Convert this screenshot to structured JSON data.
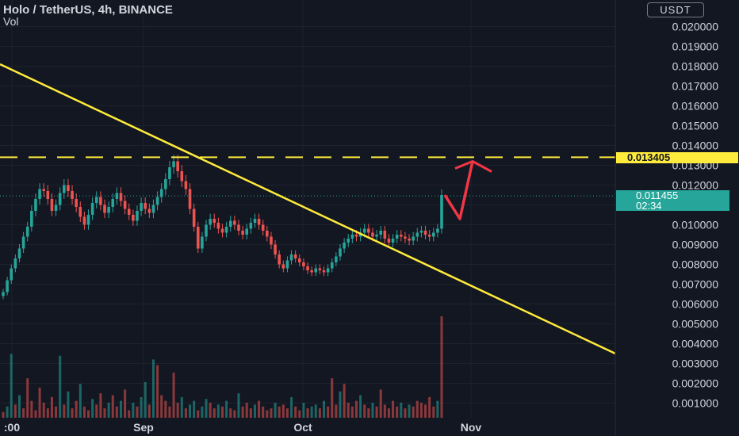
{
  "header": {
    "title": "Holo / TetherUS, 4h, BINANCE",
    "volume_label": "Vol",
    "currency": "USDT"
  },
  "markers": {
    "level_label": "0.013405",
    "last_price": "0.011455",
    "countdown": "02:34"
  },
  "colors": {
    "background": "#131722",
    "up": "#26a69a",
    "down": "#ef5350",
    "trendline": "#ffeb3b",
    "arrow": "#f23645",
    "text": "#d1d4dc"
  },
  "chart_data": {
    "type": "candlestick",
    "symbol": "Holo / TetherUS",
    "interval": "4h",
    "exchange": "BINANCE",
    "ylim": [
      0.0002,
      0.0212
    ],
    "y_ticks": [
      "0.001000",
      "0.002000",
      "0.003000",
      "0.004000",
      "0.005000",
      "0.006000",
      "0.007000",
      "0.008000",
      "0.009000",
      "0.010000",
      "0.011000",
      "0.012000",
      "0.013000",
      "0.014000",
      "0.015000",
      "0.016000",
      "0.017000",
      "0.018000",
      "0.019000",
      "0.020000"
    ],
    "x_ticks": [
      ":00",
      "Sep",
      "Oct",
      "Nov"
    ],
    "series": [
      {
        "values": [
          0.0066,
          0.0072,
          0.0078,
          0.0083,
          0.0088,
          0.0094,
          0.0099,
          0.0107,
          0.0113,
          0.0118,
          0.0117,
          0.0113,
          0.0107,
          0.011,
          0.0116,
          0.012,
          0.0117,
          0.0113,
          0.0109,
          0.0104,
          0.01,
          0.0105,
          0.0111,
          0.0114,
          0.011,
          0.0106,
          0.0109,
          0.0113,
          0.0116,
          0.0112,
          0.0108,
          0.0105,
          0.0102,
          0.0107,
          0.0111,
          0.0108,
          0.0106,
          0.011,
          0.0114,
          0.0118,
          0.0123,
          0.0129,
          0.0132,
          0.0127,
          0.0122,
          0.0118,
          0.0108,
          0.0099,
          0.0088,
          0.0094,
          0.01,
          0.0103,
          0.0101,
          0.0098,
          0.0096,
          0.0099,
          0.0102,
          0.01,
          0.0097,
          0.0095,
          0.0098,
          0.0101,
          0.0103,
          0.01,
          0.0097,
          0.0094,
          0.009,
          0.0085,
          0.008,
          0.0078,
          0.0082,
          0.0085,
          0.0083,
          0.0081,
          0.0079,
          0.0077,
          0.0076,
          0.0078,
          0.0077,
          0.0076,
          0.0078,
          0.0081,
          0.0084,
          0.0088,
          0.0091,
          0.0093,
          0.0095,
          0.0094,
          0.0096,
          0.0098,
          0.0096,
          0.0094,
          0.0095,
          0.0097,
          0.0093,
          0.0091,
          0.0093,
          0.0095,
          0.0094,
          0.0093,
          0.0092,
          0.0094,
          0.0096,
          0.0097,
          0.0095,
          0.0094,
          0.0096,
          0.0098,
          0.0115
        ]
      }
    ],
    "annotations": [
      {
        "kind": "horizontal_dashed_level",
        "value": 0.013405,
        "label": "0.013405"
      },
      {
        "kind": "last_price_line",
        "value": 0.011455,
        "label": "0.011455"
      },
      {
        "kind": "descending_trendline",
        "from": 0.0181,
        "to": 0.0035
      },
      {
        "kind": "projection_arrow",
        "points": [
          0.0115,
          0.0103,
          0.0132
        ]
      }
    ],
    "volume": [
      0.3,
      0.6,
      3.4,
      0.7,
      1.2,
      0.5,
      2.1,
      0.9,
      0.4,
      1.6,
      0.8,
      0.5,
      1.1,
      0.6,
      3.3,
      0.7,
      1.4,
      0.5,
      0.9,
      1.8,
      0.6,
      0.4,
      1.0,
      0.7,
      1.3,
      0.5,
      0.8,
      1.2,
      0.6,
      0.9,
      1.5,
      0.4,
      0.8,
      0.6,
      1.1,
      1.9,
      0.7,
      3.1,
      2.8,
      1.2,
      0.9,
      0.6,
      2.4,
      0.8,
      1.1,
      0.5,
      0.7,
      0.9,
      0.4,
      0.6,
      1.0,
      0.8,
      0.5,
      0.7,
      0.6,
      0.9,
      0.5,
      0.4,
      1.3,
      0.6,
      0.8,
      0.5,
      0.7,
      0.9,
      0.6,
      0.4,
      0.5,
      0.8,
      0.6,
      0.7,
      0.5,
      1.1,
      0.6,
      0.4,
      0.8,
      0.5,
      0.6,
      0.7,
      0.5,
      0.9,
      0.6,
      2.1,
      0.7,
      1.4,
      1.8,
      0.8,
      0.6,
      0.9,
      1.2,
      0.7,
      0.5,
      0.8,
      0.6,
      1.5,
      0.7,
      0.5,
      0.9,
      0.6,
      0.8,
      0.5,
      0.7,
      0.6,
      0.9,
      0.8,
      0.7,
      1.1,
      0.6,
      0.9,
      5.4
    ]
  }
}
